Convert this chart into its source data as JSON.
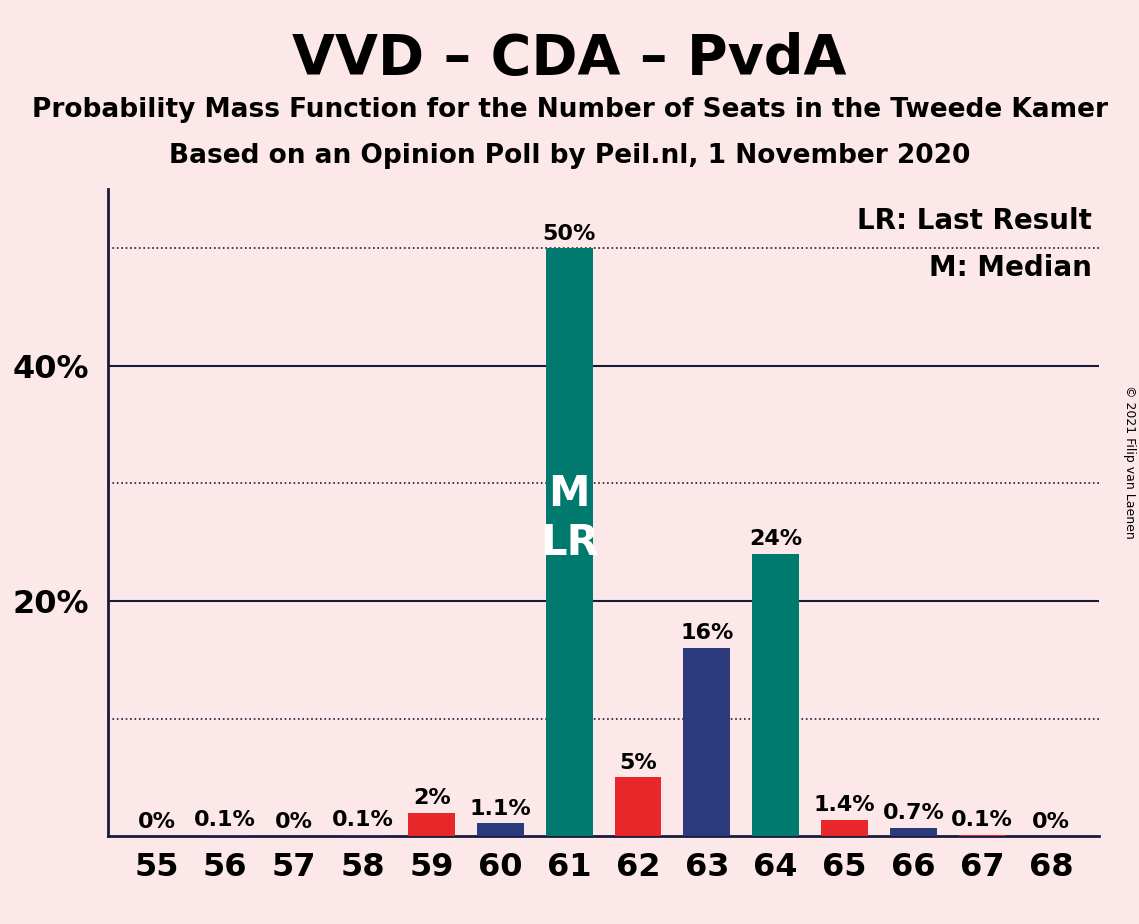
{
  "title": "VVD – CDA – PvdA",
  "subtitle1": "Probability Mass Function for the Number of Seats in the Tweede Kamer",
  "subtitle2": "Based on an Opinion Poll by Peil.nl, 1 November 2020",
  "copyright": "© 2021 Filip van Laenen",
  "categories": [
    55,
    56,
    57,
    58,
    59,
    60,
    61,
    62,
    63,
    64,
    65,
    66,
    67,
    68
  ],
  "values": [
    0.0,
    0.1,
    0.0,
    0.1,
    2.0,
    1.1,
    50.0,
    5.0,
    16.0,
    24.0,
    1.4,
    0.7,
    0.1,
    0.0
  ],
  "bar_colors": [
    "#e8272a",
    "#2b3a7a",
    "#e8272a",
    "#2b3a7a",
    "#e8272a",
    "#2b3a7a",
    "#007a6e",
    "#e8272a",
    "#2b3a7a",
    "#007a6e",
    "#e8272a",
    "#2b3a7a",
    "#e8272a",
    "#2b3a7a"
  ],
  "labels": [
    "0%",
    "0.1%",
    "0%",
    "0.1%",
    "2%",
    "1.1%",
    "50%",
    "5%",
    "16%",
    "24%",
    "1.4%",
    "0.7%",
    "0.1%",
    "0%"
  ],
  "median_seat": 61,
  "lr_seat": 61,
  "lr_label": "LR: Last Result",
  "median_label": "M: Median",
  "background_color": "#fce8e8",
  "bar_teal": "#007a6e",
  "bar_red": "#e8272a",
  "bar_navy": "#2b3a7a",
  "ylim_max": 55,
  "solid_lines": [
    20,
    40
  ],
  "dotted_lines": [
    10,
    30,
    50
  ],
  "ytick_labels_map": {
    "20": "20%",
    "40": "40%"
  },
  "title_fontsize": 40,
  "subtitle_fontsize": 19,
  "label_fontsize": 16,
  "axis_fontsize": 23,
  "legend_fontsize": 20,
  "ml_label_fontsize": 30,
  "bar_width": 0.68
}
